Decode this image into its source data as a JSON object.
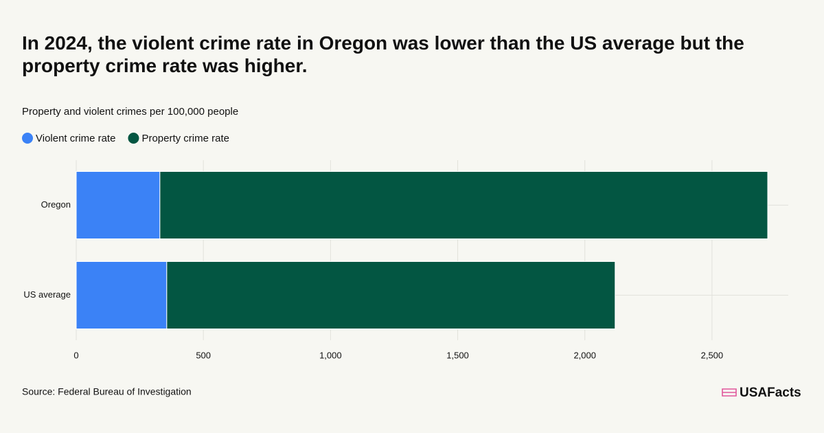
{
  "chart_data": {
    "type": "stacked-hbar",
    "title": "In 2024, the violent crime rate in Oregon was lower than the US average but the property crime rate was higher.",
    "subtitle": "Property and violent crimes per 100,000 people",
    "categories": [
      "Oregon",
      "US average"
    ],
    "series": [
      {
        "name": "Violent crime rate",
        "color": "#3b82f6",
        "values": [
          329,
          356
        ]
      },
      {
        "name": "Property crime rate",
        "color": "#035642",
        "values": [
          2390,
          1763
        ]
      }
    ],
    "xlim": [
      0,
      2800
    ],
    "xticks": [
      0,
      500,
      {
        "value": 1000,
        "label": "1,000"
      },
      {
        "value": 1500,
        "label": "1,500"
      },
      {
        "value": 2000,
        "label": "2,000"
      },
      {
        "value": 2500,
        "label": "2,500"
      }
    ],
    "grid": true,
    "source": "Source: Federal Bureau of Investigation",
    "logo": "USAFacts"
  }
}
